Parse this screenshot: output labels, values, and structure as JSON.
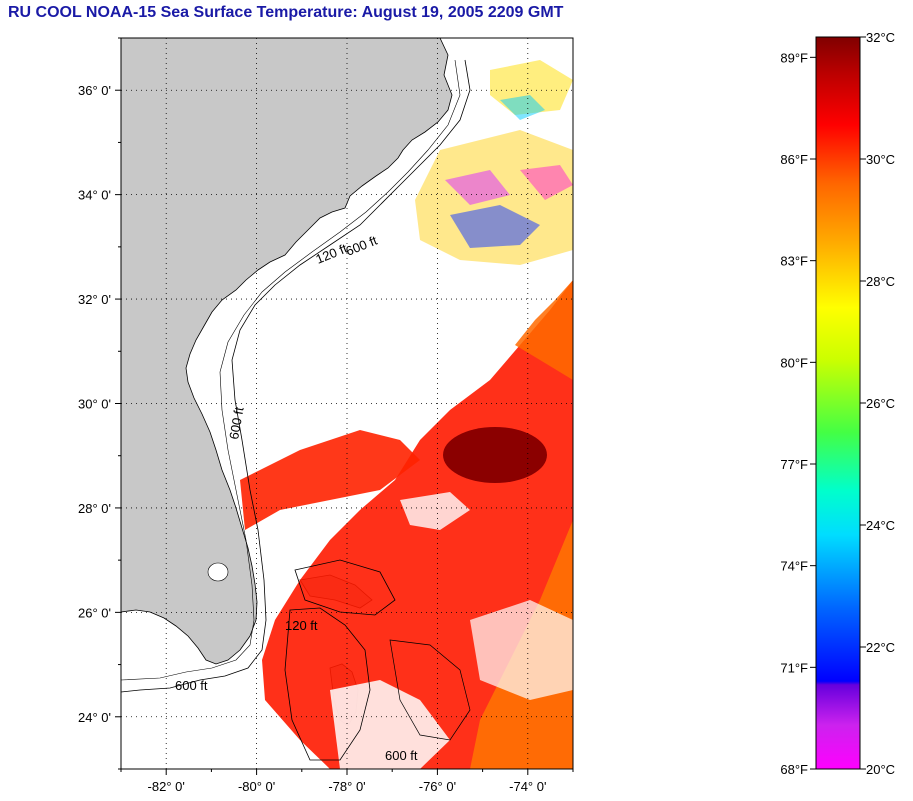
{
  "title": "RU COOL  NOAA-15  Sea Surface Temperature:  August 19, 2005 2209 GMT",
  "map": {
    "lon_labels": [
      "-82° 0'",
      "-80° 0'",
      "-78° 0'",
      "-76° 0'",
      "-74° 0'"
    ],
    "lat_labels": [
      "36° 0'",
      "34° 0'",
      "32° 0'",
      "30° 0'",
      "28° 0'",
      "26° 0'",
      "24° 0'"
    ],
    "lon_values": [
      -82,
      -80,
      -78,
      -76,
      -74
    ],
    "lat_values": [
      36,
      34,
      32,
      30,
      28,
      26,
      24
    ],
    "lon_range": [
      -83,
      -73
    ],
    "lat_range": [
      23,
      37
    ],
    "contour_labels": [
      "600 ft",
      "120 ft"
    ],
    "colors": {
      "land": "#c8c8c8",
      "cloud": "#ffffff",
      "warmest": "#8b0000"
    }
  },
  "colorbar": {
    "fahrenheit_labels": [
      "89°F",
      "86°F",
      "83°F",
      "80°F",
      "77°F",
      "74°F",
      "71°F",
      "68°F"
    ],
    "celsius_labels": [
      "32°C",
      "30°C",
      "28°C",
      "26°C",
      "24°C",
      "22°C",
      "20°C"
    ],
    "celsius_values": [
      32,
      30,
      28,
      26,
      24,
      22,
      20
    ],
    "range_c": [
      20,
      32
    ],
    "stops": [
      "#ff00ff",
      "#9900ff",
      "#0000ff",
      "#00aaff",
      "#00ffff",
      "#00ff88",
      "#88ff00",
      "#ffff00",
      "#ffaa00",
      "#ff5500",
      "#ff0000",
      "#cc0000",
      "#800000"
    ]
  }
}
